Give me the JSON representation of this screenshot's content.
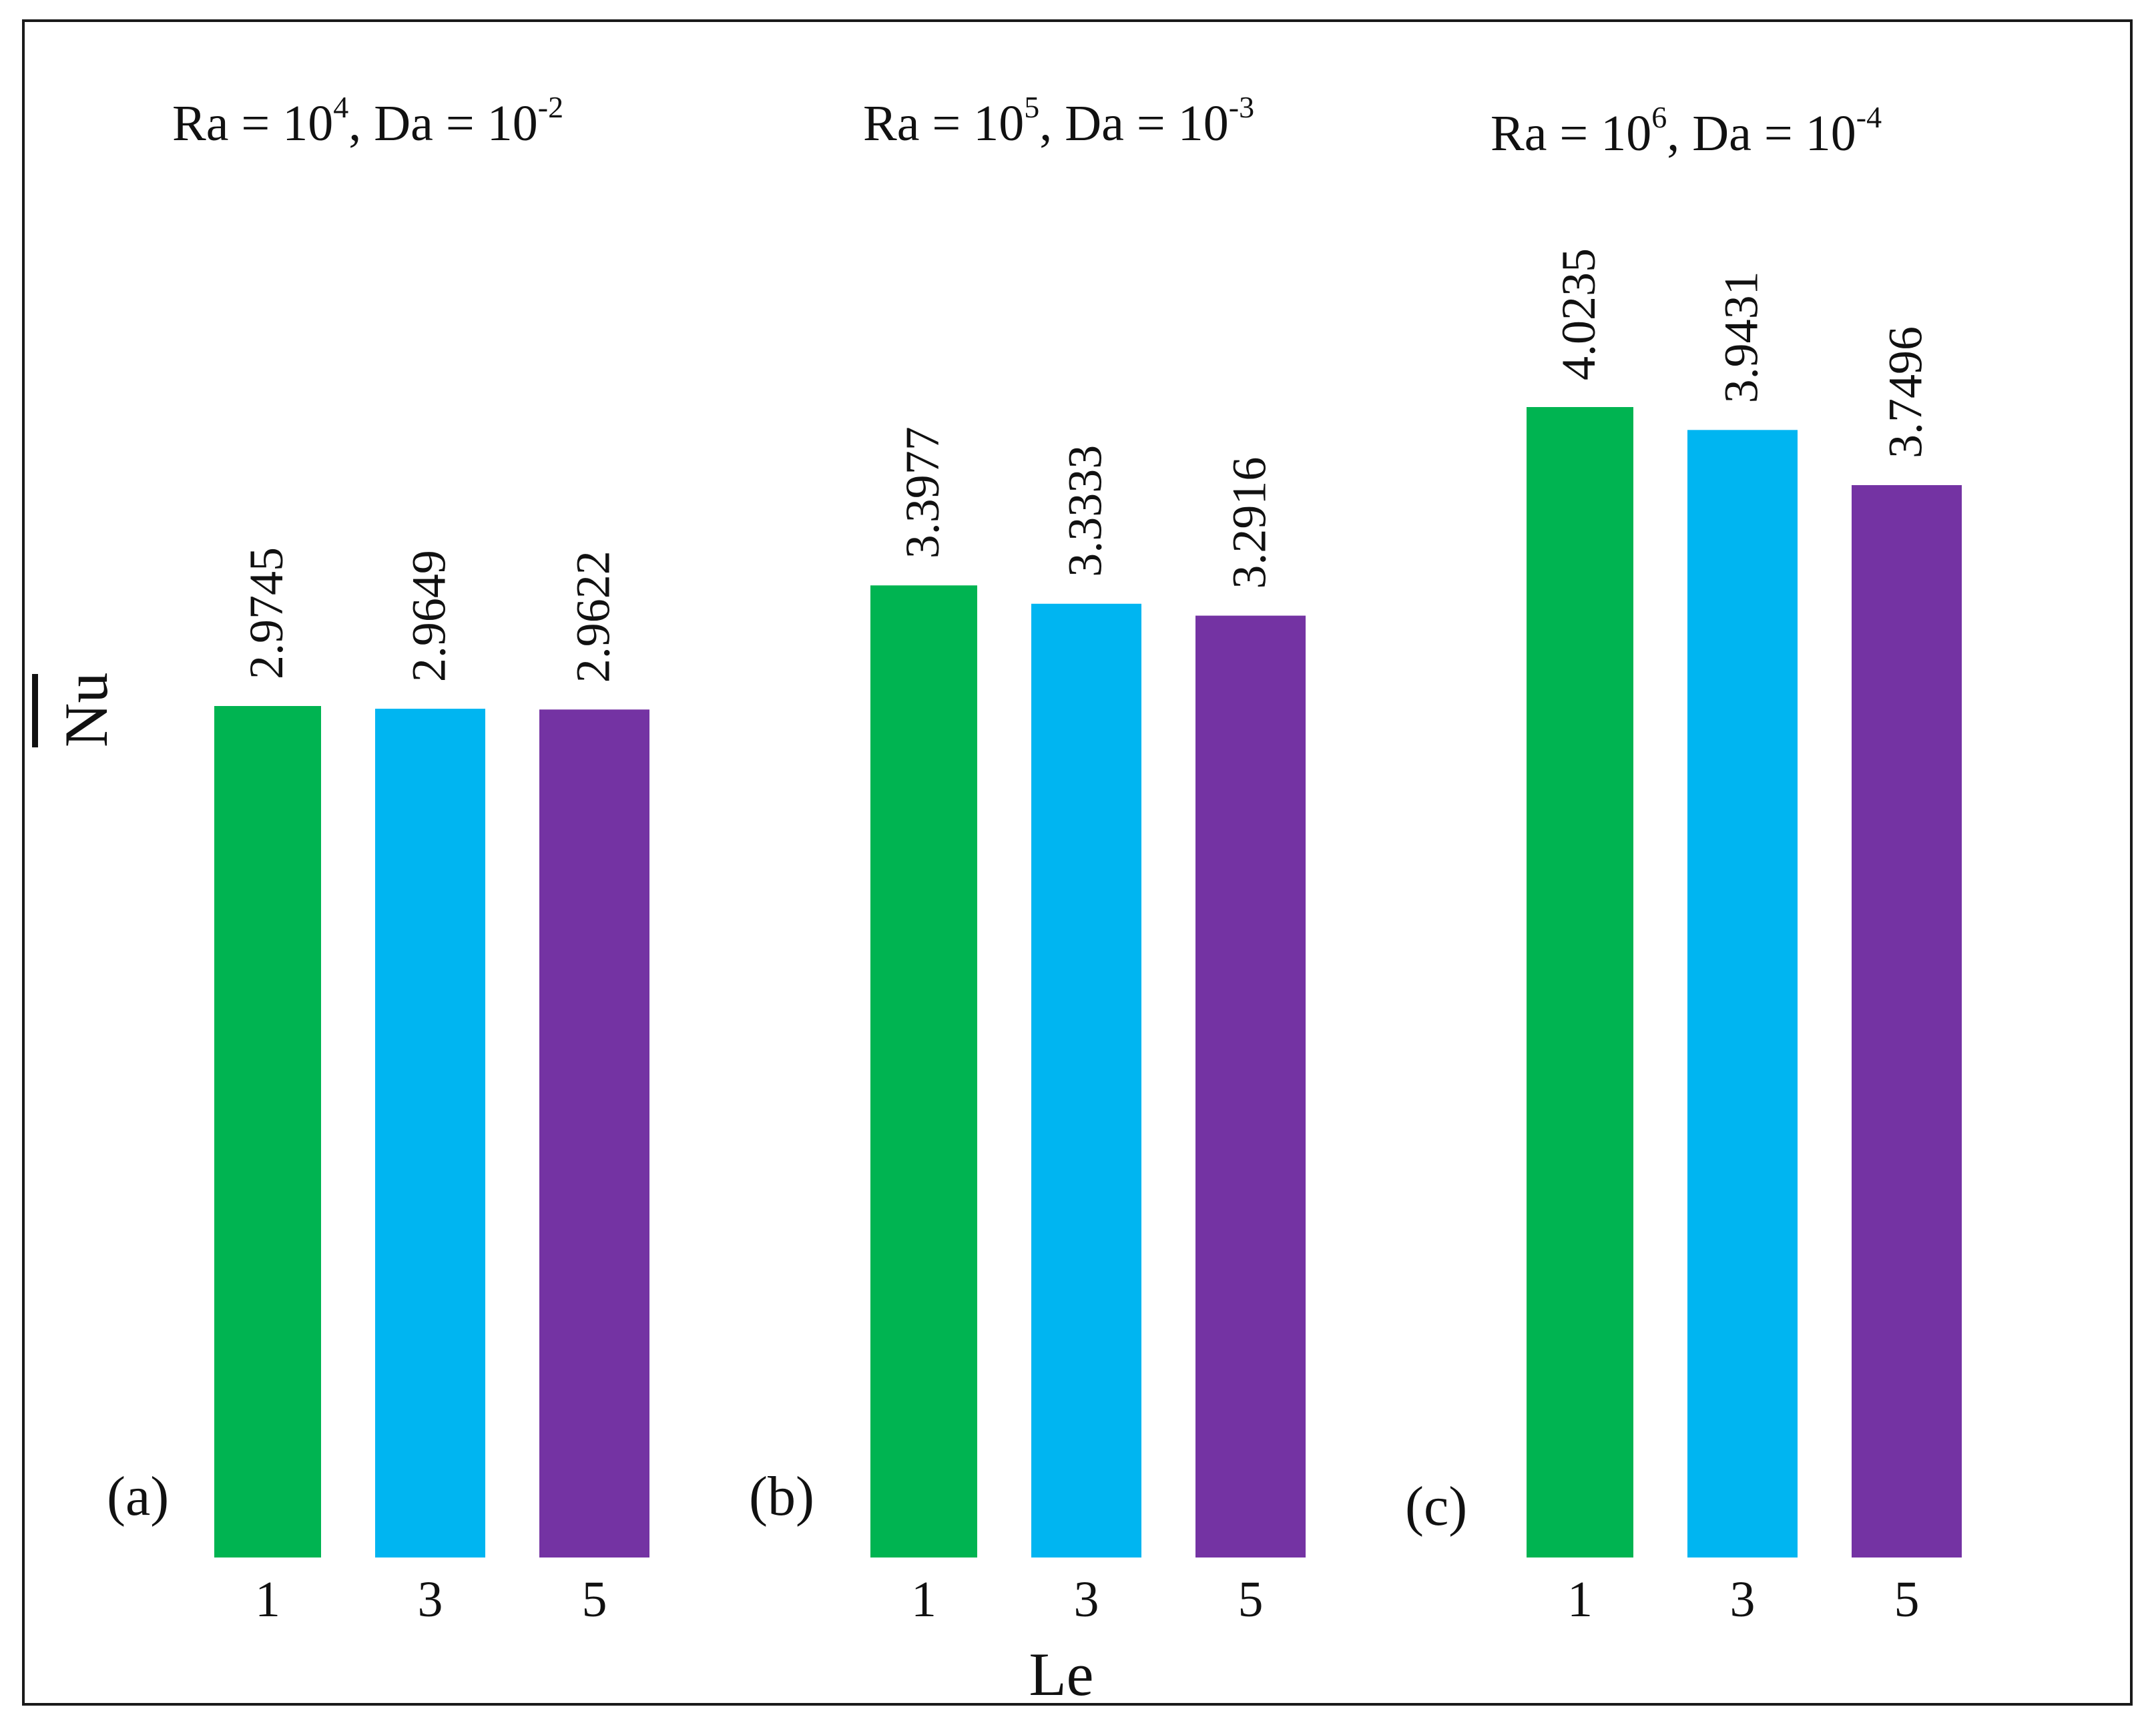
{
  "chart_data": {
    "type": "bar",
    "ylabel": "Nu",
    "xlabel": "Le",
    "colors": {
      "1": "#00B451",
      "3": "#00B5F1",
      "5": "#7433A3"
    },
    "panels": [
      {
        "label": "(a)",
        "title": {
          "ra_base": "Ra  = 10",
          "ra_exp": "4",
          "da_base": ", Da  = 10",
          "da_exp": "-2"
        },
        "categories": [
          "1",
          "3",
          "5"
        ],
        "values": [
          2.9745,
          2.9649,
          2.9622
        ],
        "value_labels": [
          "2.9745",
          "2.9649",
          "2.9622"
        ]
      },
      {
        "label": "(b)",
        "title": {
          "ra_base": "Ra  = 10",
          "ra_exp": "5",
          "da_base": ", Da  = 10",
          "da_exp": "-3"
        },
        "categories": [
          "1",
          "3",
          "5"
        ],
        "values": [
          3.3977,
          3.3333,
          3.2916
        ],
        "value_labels": [
          "3.3977",
          "3.3333",
          "3.2916"
        ]
      },
      {
        "label": "(c)",
        "title": {
          "ra_base": "Ra  = 10",
          "ra_exp": "6",
          "da_base": ", Da  = 10",
          "da_exp": "-4"
        },
        "categories": [
          "1",
          "3",
          "5"
        ],
        "values": [
          4.0235,
          3.9431,
          3.7496
        ],
        "value_labels": [
          "4.0235",
          "3.9431",
          "3.7496"
        ]
      }
    ]
  }
}
